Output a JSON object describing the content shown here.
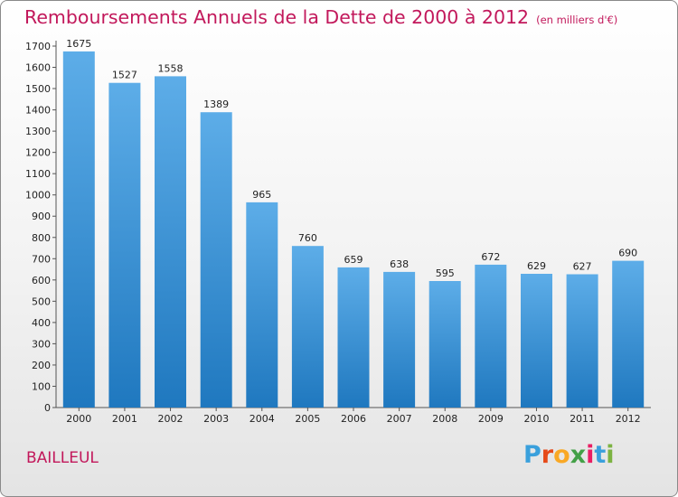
{
  "title": "Remboursements Annuels de la Dette de 2000 à 2012",
  "unit": "(en milliers d'€)",
  "commune": "BAILLEUL",
  "logo": [
    "P",
    "r",
    "o",
    "x",
    "i",
    "t",
    "i"
  ],
  "colors": {
    "title": "#c2185b",
    "bar_top": "#5dade8",
    "bar_bottom": "#1f78bf"
  },
  "chart_data": {
    "type": "bar",
    "title": "Remboursements Annuels de la Dette de 2000 à 2012",
    "xlabel": "",
    "ylabel": "",
    "categories": [
      "2000",
      "2001",
      "2002",
      "2003",
      "2004",
      "2005",
      "2006",
      "2007",
      "2008",
      "2009",
      "2010",
      "2011",
      "2012"
    ],
    "values": [
      1675,
      1527,
      1558,
      1389,
      965,
      760,
      659,
      638,
      595,
      672,
      629,
      627,
      690
    ],
    "ylim": [
      0,
      1700
    ],
    "yticks": [
      0,
      100,
      200,
      300,
      400,
      500,
      600,
      700,
      800,
      900,
      1000,
      1100,
      1200,
      1300,
      1400,
      1500,
      1600,
      1700
    ],
    "grid": false,
    "legend": "none"
  }
}
